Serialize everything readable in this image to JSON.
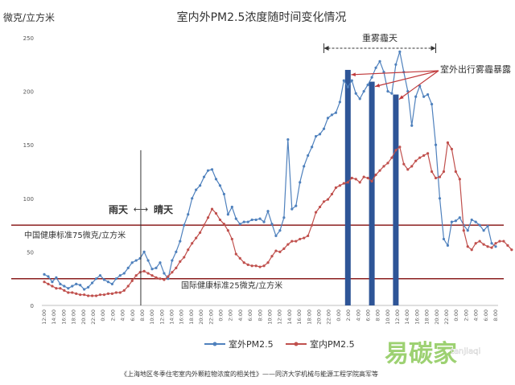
{
  "chart_data": {
    "type": "line",
    "title": "室内外PM2.5浓度随时间变化情况",
    "ylabel": "微克/立方米",
    "ylim": [
      0,
      250
    ],
    "y_ticks": [
      "0",
      "50",
      "100",
      "150",
      "200",
      "250"
    ],
    "x_ticks": [
      "12:00",
      "14:00",
      "16:00",
      "18:00",
      "20:00",
      "22:00",
      "0:00",
      "2:00",
      "4:00",
      "6:00",
      "8:00",
      "10:00",
      "12:00",
      "14:00",
      "16:00",
      "18:00",
      "20:00",
      "22:00",
      "0:00",
      "2:00",
      "4:00",
      "6:00",
      "8:00",
      "10:00",
      "12:00",
      "14:00",
      "16:00",
      "18:00",
      "20:00",
      "22:00",
      "0:00",
      "2:00",
      "4:00",
      "6:00",
      "8:00",
      "10:00",
      "12:00",
      "14:00",
      "16:00",
      "18:00",
      "20:00",
      "22:00",
      "0:00",
      "2:00",
      "4:00",
      "6:00",
      "8:00"
    ],
    "series": [
      {
        "name": "室外PM2.5",
        "color": "#4f81bd",
        "values": [
          29,
          27,
          22,
          26,
          20,
          18,
          16,
          18,
          20,
          19,
          15,
          17,
          21,
          25,
          28,
          24,
          22,
          20,
          25,
          28,
          30,
          35,
          40,
          42,
          44,
          50,
          42,
          34,
          35,
          40,
          30,
          25,
          42,
          50,
          60,
          75,
          85,
          100,
          108,
          112,
          120,
          126,
          127,
          118,
          112,
          104,
          85,
          92,
          81,
          76,
          78,
          78,
          80,
          80,
          81,
          78,
          88,
          76,
          65,
          70,
          82,
          155,
          90,
          93,
          115,
          130,
          140,
          148,
          158,
          160,
          165,
          175,
          178,
          180,
          190,
          210,
          204,
          210,
          198,
          193,
          200,
          206,
          213,
          222,
          228,
          218,
          200,
          198,
          225,
          237,
          218,
          200,
          168,
          195,
          205,
          195,
          197,
          188,
          150,
          100,
          62,
          56,
          78,
          79,
          82,
          75,
          70,
          80,
          78,
          75,
          70,
          74,
          58,
          55
        ]
      },
      {
        "name": "室内PM2.5",
        "color": "#c0504d",
        "values": [
          22,
          20,
          18,
          16,
          16,
          14,
          12,
          12,
          11,
          10,
          10,
          9,
          9,
          9,
          10,
          10,
          11,
          11,
          12,
          12,
          14,
          18,
          23,
          28,
          31,
          32,
          30,
          28,
          26,
          25,
          24,
          27,
          31,
          35,
          41,
          45,
          52,
          58,
          63,
          68,
          75,
          82,
          90,
          86,
          80,
          76,
          70,
          62,
          48,
          44,
          40,
          38,
          37,
          37,
          36,
          37,
          40,
          46,
          51,
          50,
          53,
          57,
          60,
          60,
          62,
          63,
          65,
          75,
          87,
          92,
          97,
          99,
          104,
          110,
          112,
          114,
          115,
          119,
          118,
          115,
          120,
          119,
          116,
          122,
          126,
          130,
          133,
          138,
          145,
          148,
          132,
          127,
          130,
          135,
          138,
          140,
          142,
          125,
          119,
          120,
          125,
          152,
          146,
          125,
          118,
          70,
          55,
          52,
          58,
          60,
          57,
          55,
          54,
          58,
          60,
          60,
          56,
          52
        ]
      }
    ],
    "bars": [
      {
        "x_position": 76,
        "value": 220
      },
      {
        "x_position": 82,
        "value": 209
      },
      {
        "x_position": 88,
        "value": 197
      }
    ],
    "reference_lines": [
      {
        "label": "中国健康标准75微克/立方米",
        "value": 75,
        "color": "#8b1e1e"
      },
      {
        "label": "国际健康标准25微克/立方米",
        "value": 25,
        "color": "#8b1e1e"
      }
    ],
    "annotations": {
      "rain_label": "雨天",
      "arrow_label": "←→",
      "sunny_label": "晴天",
      "smog_label": "重雾霾天",
      "outdoor_label": "室外出行雾霾暴露"
    },
    "legend_placement": "bottom-center",
    "grid": false,
    "footer_caption": "《上海地区冬季住宅室内外颗粒物浓度的相关性》——同济大学机械与能源工程学院高军等",
    "watermark_text": "易碳家",
    "watermark_url": "tanjiaqi"
  }
}
